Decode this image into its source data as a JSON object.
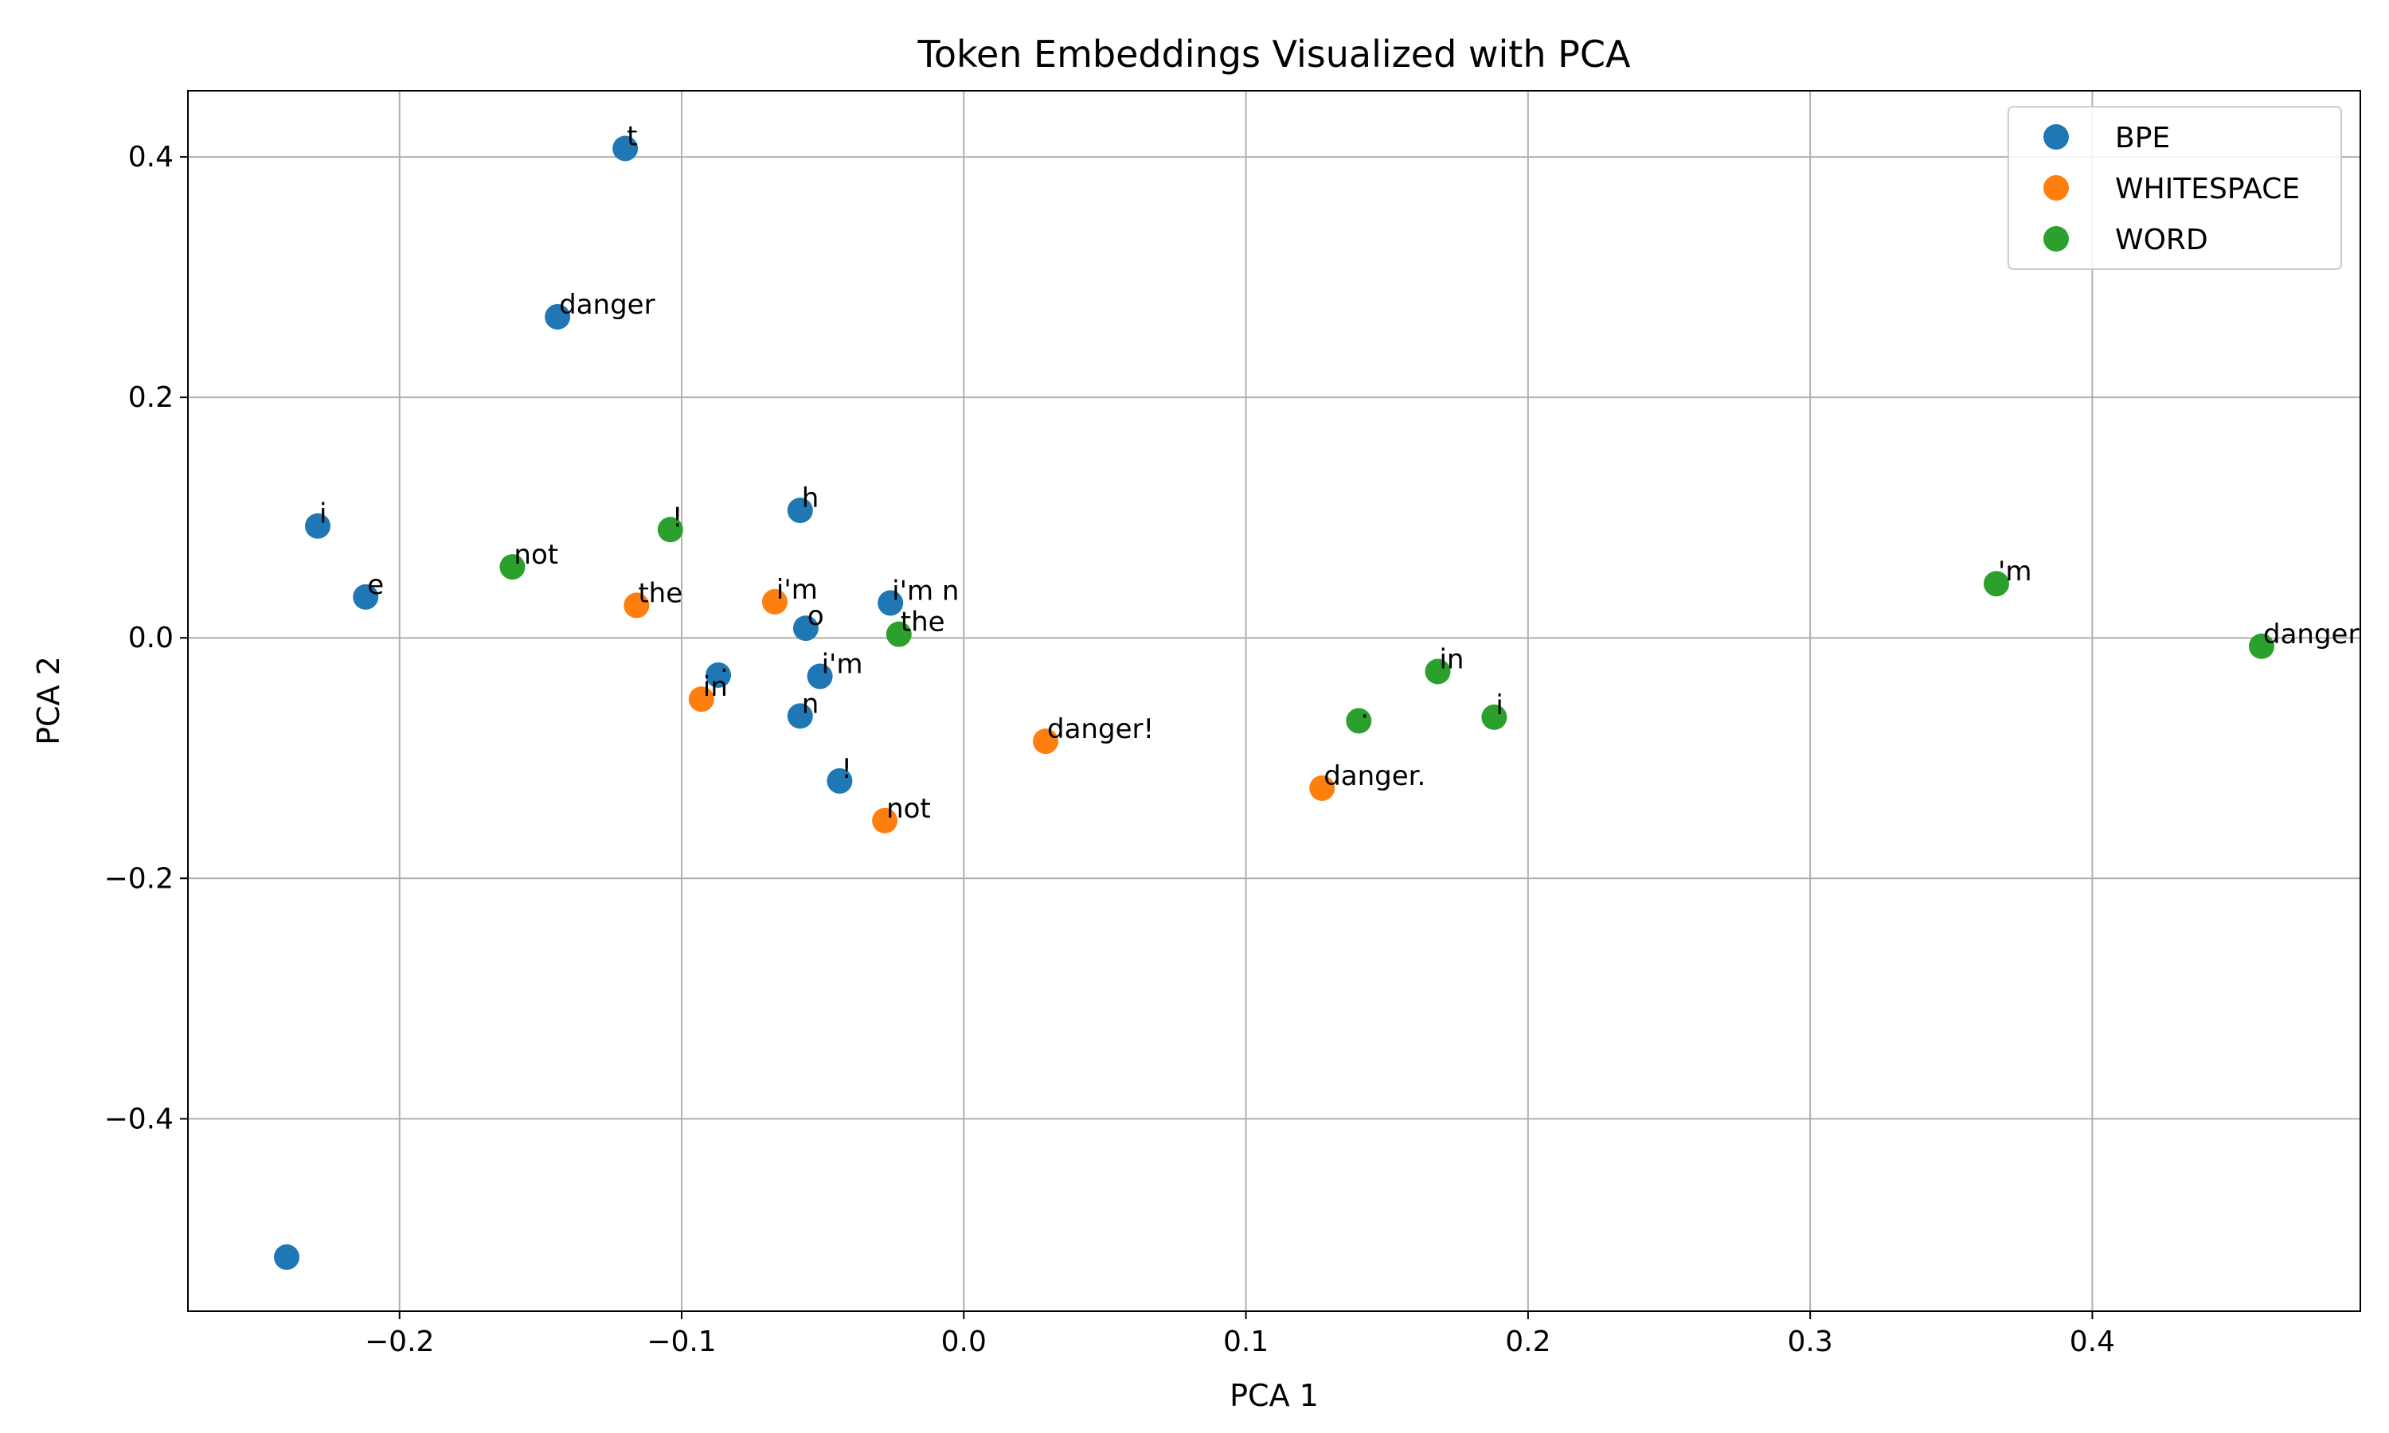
{
  "chart_data": {
    "type": "scatter",
    "title": "Token Embeddings Visualized with PCA",
    "xlabel": "PCA 1",
    "ylabel": "PCA 2",
    "xlim": [
      -0.275,
      0.495
    ],
    "ylim": [
      -0.56,
      0.455
    ],
    "xticks": [
      -0.2,
      -0.1,
      0.0,
      0.1,
      0.2,
      0.3,
      0.4
    ],
    "xtick_labels": [
      "−0.2",
      "−0.1",
      "0.0",
      "0.1",
      "0.2",
      "0.3",
      "0.4"
    ],
    "yticks": [
      0.4,
      0.2,
      0.0,
      -0.2,
      -0.4
    ],
    "ytick_labels": [
      "0.4",
      "0.2",
      "0.0",
      "−0.2",
      "−0.4"
    ],
    "grid": true,
    "legend_position": "top-right",
    "series": [
      {
        "name": "BPE",
        "color": "#1f77b4",
        "points": [
          {
            "x": -0.12,
            "y": 0.407,
            "label": "t"
          },
          {
            "x": -0.144,
            "y": 0.267,
            "label": "danger"
          },
          {
            "x": -0.229,
            "y": 0.093,
            "label": "i"
          },
          {
            "x": -0.212,
            "y": 0.034,
            "label": "e"
          },
          {
            "x": -0.058,
            "y": 0.106,
            "label": "h"
          },
          {
            "x": -0.026,
            "y": 0.029,
            "label": "i'm n"
          },
          {
            "x": -0.056,
            "y": 0.008,
            "label": "o"
          },
          {
            "x": -0.087,
            "y": -0.031,
            "label": "."
          },
          {
            "x": -0.051,
            "y": -0.032,
            "label": "i'm"
          },
          {
            "x": -0.058,
            "y": -0.065,
            "label": "n"
          },
          {
            "x": -0.044,
            "y": -0.119,
            "label": "!"
          },
          {
            "x": -0.24,
            "y": -0.515,
            "label": ""
          }
        ]
      },
      {
        "name": "WHITESPACE",
        "color": "#ff7f0e",
        "points": [
          {
            "x": -0.116,
            "y": 0.027,
            "label": "the"
          },
          {
            "x": -0.067,
            "y": 0.03,
            "label": "i'm"
          },
          {
            "x": -0.093,
            "y": -0.051,
            "label": "in"
          },
          {
            "x": 0.029,
            "y": -0.086,
            "label": "danger!"
          },
          {
            "x": 0.127,
            "y": -0.125,
            "label": "danger."
          },
          {
            "x": -0.028,
            "y": -0.152,
            "label": "not"
          }
        ]
      },
      {
        "name": "WORD",
        "color": "#2ca02c",
        "points": [
          {
            "x": -0.16,
            "y": 0.059,
            "label": "not"
          },
          {
            "x": -0.104,
            "y": 0.09,
            "label": "!"
          },
          {
            "x": -0.023,
            "y": 0.003,
            "label": "the"
          },
          {
            "x": 0.168,
            "y": -0.028,
            "label": "in"
          },
          {
            "x": 0.14,
            "y": -0.069,
            "label": "."
          },
          {
            "x": 0.188,
            "y": -0.066,
            "label": "i"
          },
          {
            "x": 0.366,
            "y": 0.045,
            "label": "'m"
          },
          {
            "x": 0.46,
            "y": -0.007,
            "label": "danger"
          }
        ]
      }
    ]
  }
}
